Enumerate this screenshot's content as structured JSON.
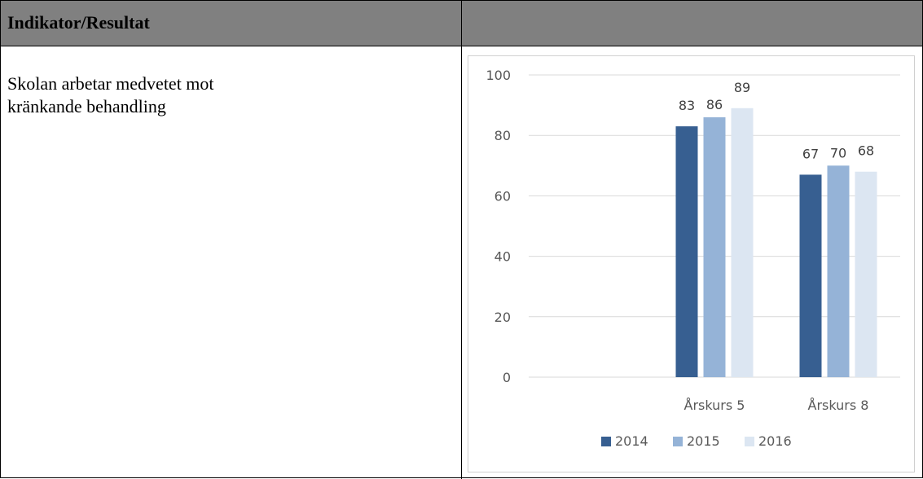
{
  "table": {
    "header": "Indikator/Resultat",
    "indicator_lines": [
      "Skolan arbetar medvetet mot",
      "kränkande behandling"
    ]
  },
  "chart_data": {
    "type": "bar",
    "categories": [
      "Årskurs 5",
      "Årskurs 8"
    ],
    "series": [
      {
        "name": "2014",
        "values": [
          83,
          67
        ],
        "color": "#375f91"
      },
      {
        "name": "2015",
        "values": [
          86,
          70
        ],
        "color": "#95b3d7"
      },
      {
        "name": "2016",
        "values": [
          89,
          68
        ],
        "color": "#dce6f2"
      }
    ],
    "ylim": [
      0,
      100
    ],
    "yticks": [
      0,
      20,
      40,
      60,
      80,
      100
    ],
    "grid": true,
    "legend": "bottom",
    "data_labels": true
  }
}
